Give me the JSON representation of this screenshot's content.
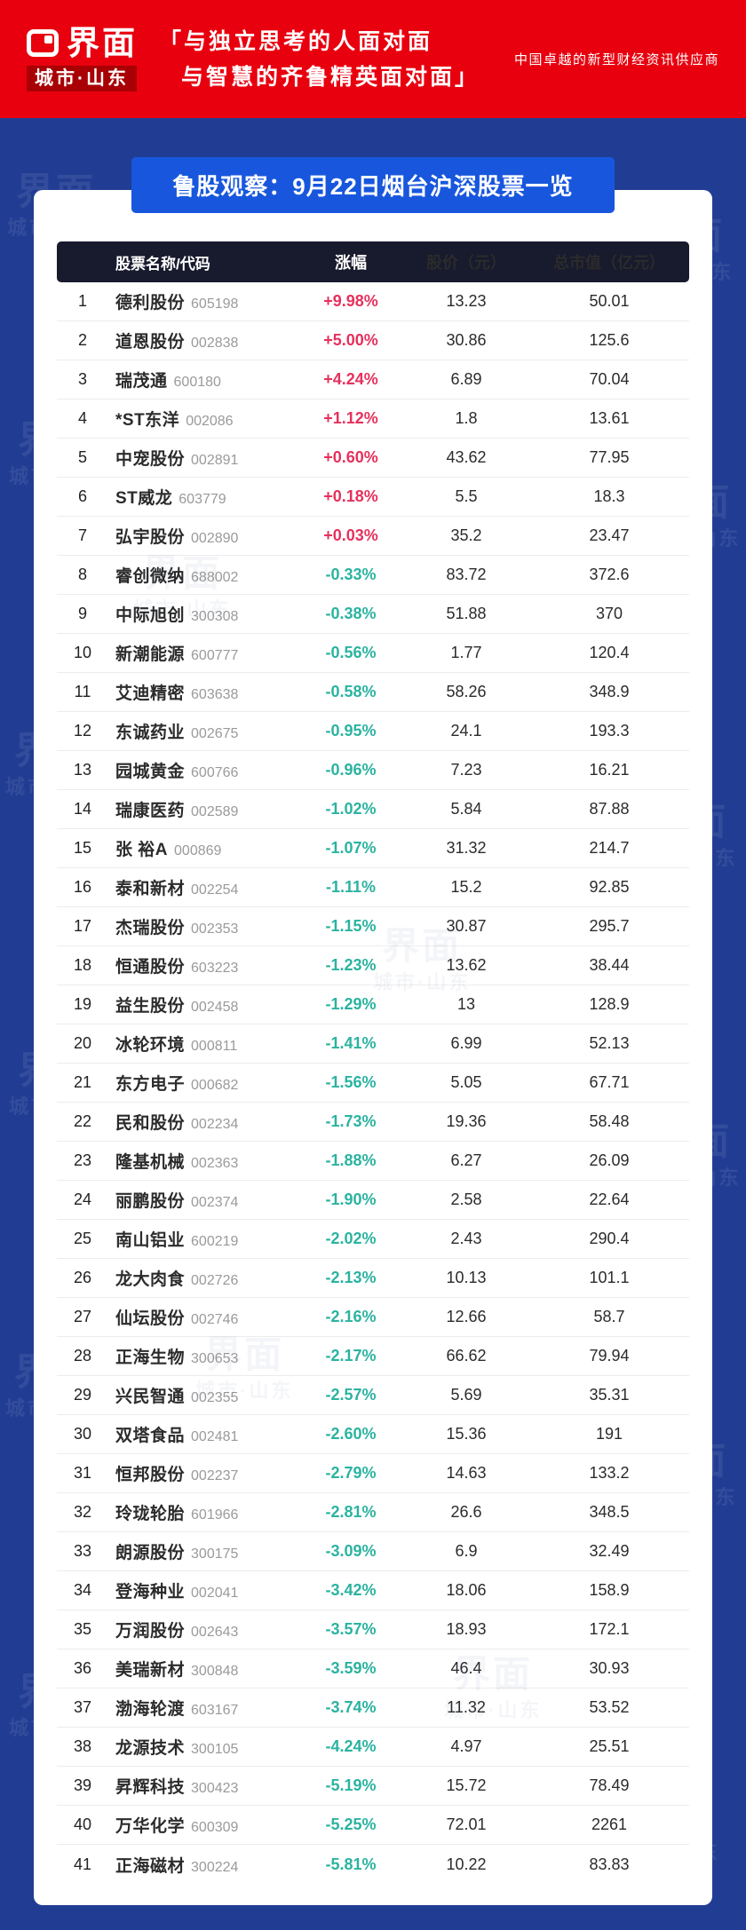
{
  "header": {
    "logo_text": "界面",
    "logo_sub": "城市·山东",
    "slogan_line1": "「与独立思考的人面对面",
    "slogan_line2": "与智慧的齐鲁精英面对面」",
    "tagline": "中国卓越的新型财经资讯供应商"
  },
  "banner": {
    "title": "鲁股观察：9月22日烟台沪深股票一览"
  },
  "watermark": {
    "brand": "界面",
    "sub": "城市·山东"
  },
  "chart_data": {
    "type": "table",
    "title": "鲁股观察：9月22日烟台沪深股票一览",
    "columns": [
      "股票名称/代码",
      "涨幅",
      "股价（元）",
      "总市值（亿元）"
    ],
    "rows": [
      {
        "index": 1,
        "name": "德利股份",
        "code": "605198",
        "change": "+9.98%",
        "price": "13.23",
        "market_cap": "50.01",
        "direction": "up"
      },
      {
        "index": 2,
        "name": "道恩股份",
        "code": "002838",
        "change": "+5.00%",
        "price": "30.86",
        "market_cap": "125.6",
        "direction": "up"
      },
      {
        "index": 3,
        "name": "瑞茂通",
        "code": "600180",
        "change": "+4.24%",
        "price": "6.89",
        "market_cap": "70.04",
        "direction": "up"
      },
      {
        "index": 4,
        "name": "*ST东洋",
        "code": "002086",
        "change": "+1.12%",
        "price": "1.8",
        "market_cap": "13.61",
        "direction": "up"
      },
      {
        "index": 5,
        "name": "中宠股份",
        "code": "002891",
        "change": "+0.60%",
        "price": "43.62",
        "market_cap": "77.95",
        "direction": "up"
      },
      {
        "index": 6,
        "name": "ST威龙",
        "code": "603779",
        "change": "+0.18%",
        "price": "5.5",
        "market_cap": "18.3",
        "direction": "up"
      },
      {
        "index": 7,
        "name": "弘宇股份",
        "code": "002890",
        "change": "+0.03%",
        "price": "35.2",
        "market_cap": "23.47",
        "direction": "up"
      },
      {
        "index": 8,
        "name": "睿创微纳",
        "code": "688002",
        "change": "-0.33%",
        "price": "83.72",
        "market_cap": "372.6",
        "direction": "down"
      },
      {
        "index": 9,
        "name": "中际旭创",
        "code": "300308",
        "change": "-0.38%",
        "price": "51.88",
        "market_cap": "370",
        "direction": "down"
      },
      {
        "index": 10,
        "name": "新潮能源",
        "code": "600777",
        "change": "-0.56%",
        "price": "1.77",
        "market_cap": "120.4",
        "direction": "down"
      },
      {
        "index": 11,
        "name": "艾迪精密",
        "code": "603638",
        "change": "-0.58%",
        "price": "58.26",
        "market_cap": "348.9",
        "direction": "down"
      },
      {
        "index": 12,
        "name": "东诚药业",
        "code": "002675",
        "change": "-0.95%",
        "price": "24.1",
        "market_cap": "193.3",
        "direction": "down"
      },
      {
        "index": 13,
        "name": "园城黄金",
        "code": "600766",
        "change": "-0.96%",
        "price": "7.23",
        "market_cap": "16.21",
        "direction": "down"
      },
      {
        "index": 14,
        "name": "瑞康医药",
        "code": "002589",
        "change": "-1.02%",
        "price": "5.84",
        "market_cap": "87.88",
        "direction": "down"
      },
      {
        "index": 15,
        "name": "张 裕A",
        "code": "000869",
        "change": "-1.07%",
        "price": "31.32",
        "market_cap": "214.7",
        "direction": "down"
      },
      {
        "index": 16,
        "name": "泰和新材",
        "code": "002254",
        "change": "-1.11%",
        "price": "15.2",
        "market_cap": "92.85",
        "direction": "down"
      },
      {
        "index": 17,
        "name": "杰瑞股份",
        "code": "002353",
        "change": "-1.15%",
        "price": "30.87",
        "market_cap": "295.7",
        "direction": "down"
      },
      {
        "index": 18,
        "name": "恒通股份",
        "code": "603223",
        "change": "-1.23%",
        "price": "13.62",
        "market_cap": "38.44",
        "direction": "down"
      },
      {
        "index": 19,
        "name": "益生股份",
        "code": "002458",
        "change": "-1.29%",
        "price": "13",
        "market_cap": "128.9",
        "direction": "down"
      },
      {
        "index": 20,
        "name": "冰轮环境",
        "code": "000811",
        "change": "-1.41%",
        "price": "6.99",
        "market_cap": "52.13",
        "direction": "down"
      },
      {
        "index": 21,
        "name": "东方电子",
        "code": "000682",
        "change": "-1.56%",
        "price": "5.05",
        "market_cap": "67.71",
        "direction": "down"
      },
      {
        "index": 22,
        "name": "民和股份",
        "code": "002234",
        "change": "-1.73%",
        "price": "19.36",
        "market_cap": "58.48",
        "direction": "down"
      },
      {
        "index": 23,
        "name": "隆基机械",
        "code": "002363",
        "change": "-1.88%",
        "price": "6.27",
        "market_cap": "26.09",
        "direction": "down"
      },
      {
        "index": 24,
        "name": "丽鹏股份",
        "code": "002374",
        "change": "-1.90%",
        "price": "2.58",
        "market_cap": "22.64",
        "direction": "down"
      },
      {
        "index": 25,
        "name": "南山铝业",
        "code": "600219",
        "change": "-2.02%",
        "price": "2.43",
        "market_cap": "290.4",
        "direction": "down"
      },
      {
        "index": 26,
        "name": "龙大肉食",
        "code": "002726",
        "change": "-2.13%",
        "price": "10.13",
        "market_cap": "101.1",
        "direction": "down"
      },
      {
        "index": 27,
        "name": "仙坛股份",
        "code": "002746",
        "change": "-2.16%",
        "price": "12.66",
        "market_cap": "58.7",
        "direction": "down"
      },
      {
        "index": 28,
        "name": "正海生物",
        "code": "300653",
        "change": "-2.17%",
        "price": "66.62",
        "market_cap": "79.94",
        "direction": "down"
      },
      {
        "index": 29,
        "name": "兴民智通",
        "code": "002355",
        "change": "-2.57%",
        "price": "5.69",
        "market_cap": "35.31",
        "direction": "down"
      },
      {
        "index": 30,
        "name": "双塔食品",
        "code": "002481",
        "change": "-2.60%",
        "price": "15.36",
        "market_cap": "191",
        "direction": "down"
      },
      {
        "index": 31,
        "name": "恒邦股份",
        "code": "002237",
        "change": "-2.79%",
        "price": "14.63",
        "market_cap": "133.2",
        "direction": "down"
      },
      {
        "index": 32,
        "name": "玲珑轮胎",
        "code": "601966",
        "change": "-2.81%",
        "price": "26.6",
        "market_cap": "348.5",
        "direction": "down"
      },
      {
        "index": 33,
        "name": "朗源股份",
        "code": "300175",
        "change": "-3.09%",
        "price": "6.9",
        "market_cap": "32.49",
        "direction": "down"
      },
      {
        "index": 34,
        "name": "登海种业",
        "code": "002041",
        "change": "-3.42%",
        "price": "18.06",
        "market_cap": "158.9",
        "direction": "down"
      },
      {
        "index": 35,
        "name": "万润股份",
        "code": "002643",
        "change": "-3.57%",
        "price": "18.93",
        "market_cap": "172.1",
        "direction": "down"
      },
      {
        "index": 36,
        "name": "美瑞新材",
        "code": "300848",
        "change": "-3.59%",
        "price": "46.4",
        "market_cap": "30.93",
        "direction": "down"
      },
      {
        "index": 37,
        "name": "渤海轮渡",
        "code": "603167",
        "change": "-3.74%",
        "price": "11.32",
        "market_cap": "53.52",
        "direction": "down"
      },
      {
        "index": 38,
        "name": "龙源技术",
        "code": "300105",
        "change": "-4.24%",
        "price": "4.97",
        "market_cap": "25.51",
        "direction": "down"
      },
      {
        "index": 39,
        "name": "昇辉科技",
        "code": "300423",
        "change": "-5.19%",
        "price": "15.72",
        "market_cap": "78.49",
        "direction": "down"
      },
      {
        "index": 40,
        "name": "万华化学",
        "code": "600309",
        "change": "-5.25%",
        "price": "72.01",
        "market_cap": "2261",
        "direction": "down"
      },
      {
        "index": 41,
        "name": "正海磁材",
        "code": "300224",
        "change": "-5.81%",
        "price": "10.22",
        "market_cap": "83.83",
        "direction": "down"
      }
    ]
  },
  "colors": {
    "header_red": "#e8000f",
    "logo_dark_red": "#a80004",
    "background_blue": "#213d93",
    "banner_blue": "#1857dd",
    "table_header_dark": "#181a2e",
    "positive_red": "#e5315d",
    "negative_teal": "#2bb3a0"
  }
}
